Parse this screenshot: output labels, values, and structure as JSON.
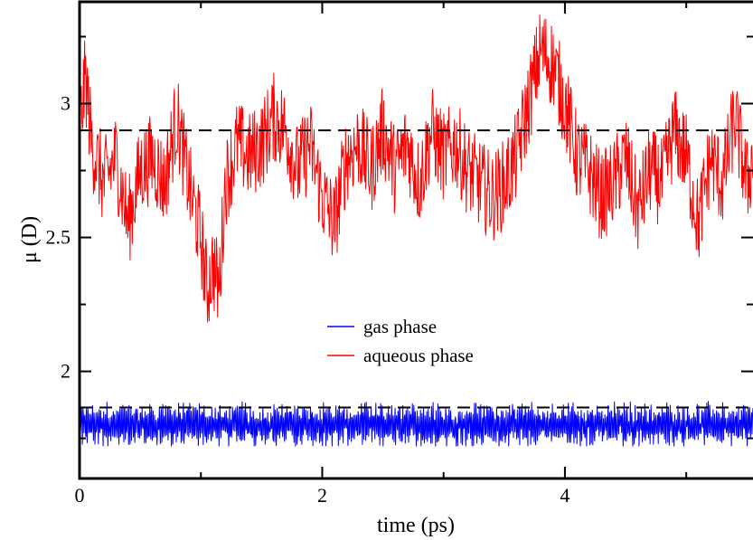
{
  "chart_data": {
    "type": "line",
    "title": "",
    "xlabel": "time (ps)",
    "ylabel": "μ (D)",
    "xlim": [
      0,
      5.55
    ],
    "ylim": [
      1.6,
      3.38
    ],
    "x_ticks": [
      0,
      2,
      4
    ],
    "x_tick_labels": [
      "0",
      "2",
      "4"
    ],
    "y_ticks": [
      2,
      2.5,
      3
    ],
    "y_tick_labels": [
      "2",
      "2.5",
      "3"
    ],
    "grid": false,
    "legend_position": "center",
    "reference_lines": [
      {
        "y": 2.9,
        "style": "dashed",
        "color": "#000000"
      },
      {
        "y": 1.865,
        "style": "dashed",
        "color": "#000000"
      }
    ],
    "series": [
      {
        "name": "gas phase",
        "color": "#0000ff",
        "mean": 1.8,
        "min": 1.72,
        "max": 1.9,
        "x_start": 0,
        "x_end": 5.55
      },
      {
        "name": "aqueous phase",
        "color": "#ff0000",
        "x": [
          0,
          0.05,
          0.1,
          0.2,
          0.3,
          0.4,
          0.5,
          0.6,
          0.7,
          0.8,
          0.9,
          1.0,
          1.05,
          1.1,
          1.15,
          1.2,
          1.3,
          1.4,
          1.5,
          1.6,
          1.7,
          1.8,
          1.9,
          2.0,
          2.1,
          2.2,
          2.3,
          2.4,
          2.5,
          2.6,
          2.7,
          2.8,
          2.9,
          3.0,
          3.1,
          3.2,
          3.3,
          3.4,
          3.5,
          3.6,
          3.7,
          3.8,
          3.9,
          4.0,
          4.1,
          4.2,
          4.3,
          4.4,
          4.5,
          4.6,
          4.7,
          4.8,
          4.9,
          5.0,
          5.1,
          5.2,
          5.3,
          5.4,
          5.5,
          5.55
        ],
        "y": [
          2.9,
          3.1,
          2.85,
          2.7,
          2.8,
          2.55,
          2.75,
          2.8,
          2.7,
          2.95,
          2.7,
          2.5,
          2.3,
          2.4,
          2.3,
          2.7,
          2.85,
          2.8,
          2.85,
          2.95,
          2.9,
          2.75,
          2.85,
          2.65,
          2.55,
          2.8,
          2.85,
          2.75,
          2.9,
          2.75,
          2.85,
          2.7,
          2.9,
          2.8,
          2.85,
          2.75,
          2.7,
          2.65,
          2.7,
          2.8,
          3.0,
          3.2,
          3.15,
          3.0,
          2.8,
          2.75,
          2.65,
          2.7,
          2.8,
          2.6,
          2.75,
          2.7,
          2.9,
          2.8,
          2.55,
          2.8,
          2.7,
          2.95,
          2.7,
          2.8
        ]
      }
    ]
  }
}
